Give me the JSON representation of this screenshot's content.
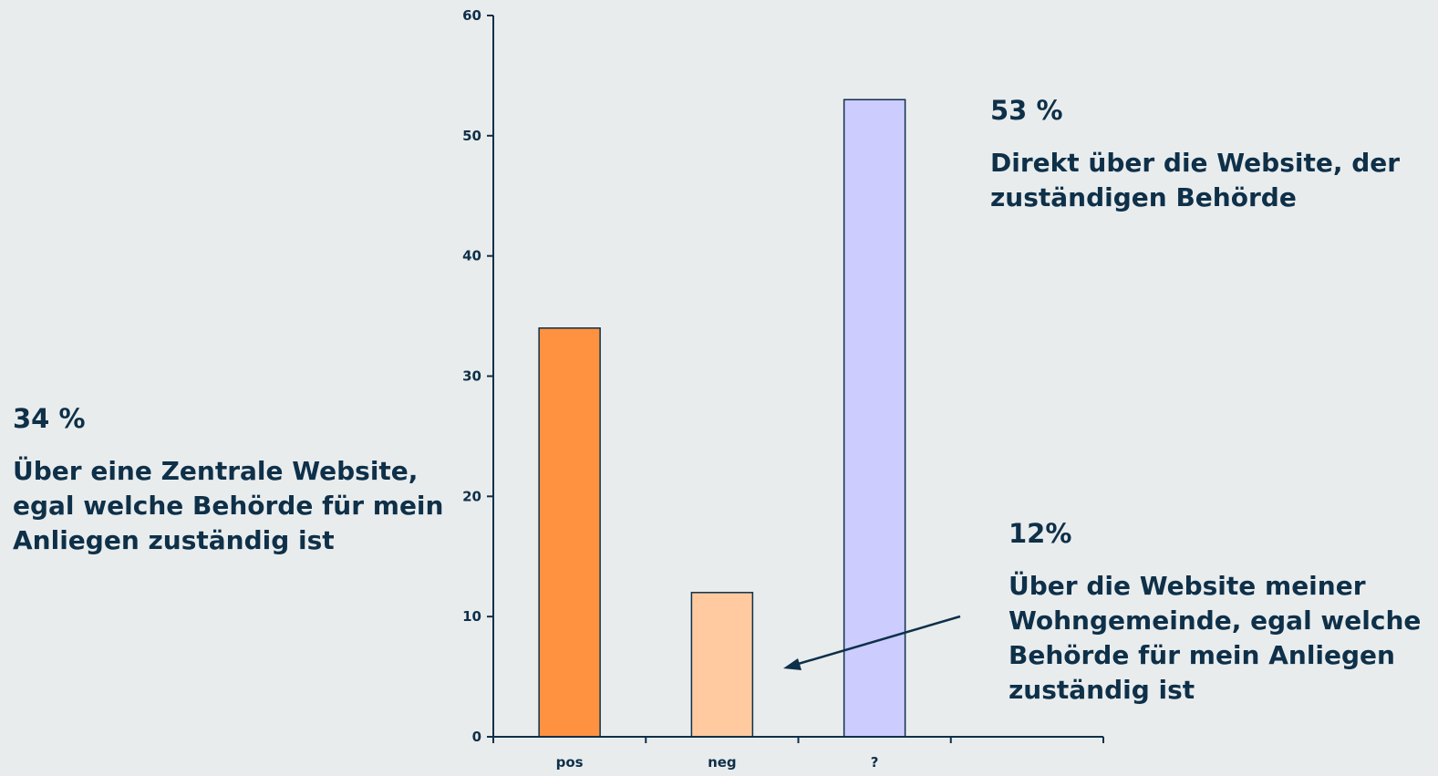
{
  "chart_data": {
    "type": "bar",
    "categories": [
      "pos",
      "neg",
      "?",
      ""
    ],
    "values": [
      34,
      12,
      53,
      null
    ],
    "colors": [
      "#ff9240",
      "#ffcaa0",
      "#ccccff"
    ],
    "ylim": [
      0,
      60
    ],
    "yticks": [
      0,
      10,
      20,
      30,
      40,
      50,
      60
    ],
    "grid": false,
    "title": "",
    "xlabel": "",
    "ylabel": ""
  },
  "annotations": {
    "pos": {
      "percent": "34 %",
      "text": "Über eine Zentrale Website, egal welche Behörde für mein Anliegen zuständig ist"
    },
    "q": {
      "percent": "53 %",
      "text": "Direkt über die Website, der zuständigen Behörde"
    },
    "neg": {
      "percent": "12%",
      "text": "Über die Website meiner Wohngemeinde, egal welche Behörde für mein Anliegen zuständig ist"
    }
  }
}
